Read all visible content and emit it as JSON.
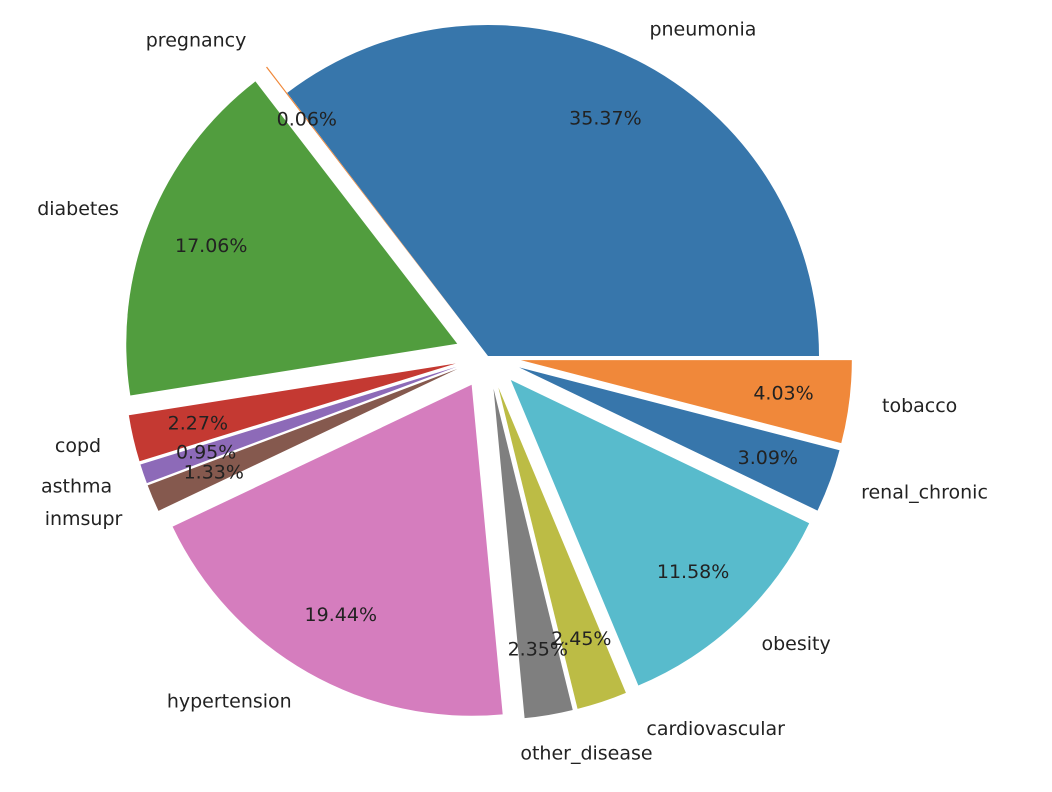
{
  "chart_data": {
    "type": "pie",
    "title": "",
    "start_angle_deg": 0,
    "direction": "counterclockwise",
    "slices": [
      {
        "label": "pneumonia",
        "percent_label": "35.37%",
        "value": 35.37,
        "color": "#3776ab",
        "explode": false
      },
      {
        "label": "pregnancy",
        "percent_label": "0.06%",
        "value": 0.06,
        "color": "#f0883a",
        "explode": true
      },
      {
        "label": "diabetes",
        "percent_label": "17.06%",
        "value": 17.06,
        "color": "#519d3e",
        "explode": true
      },
      {
        "label": "copd",
        "percent_label": "2.27%",
        "value": 2.27,
        "color": "#c43932",
        "explode": true
      },
      {
        "label": "asthma",
        "percent_label": "0.95%",
        "value": 0.95,
        "color": "#8d6ab8",
        "explode": true
      },
      {
        "label": "inmsupr",
        "percent_label": "1.33%",
        "value": 1.33,
        "color": "#85594e",
        "explode": true
      },
      {
        "label": "hypertension",
        "percent_label": "19.44%",
        "value": 19.44,
        "color": "#d57dbe",
        "explode": true
      },
      {
        "label": "other_disease",
        "percent_label": "2.35%",
        "value": 2.35,
        "color": "#7f7f7f",
        "explode": true
      },
      {
        "label": "cardiovascular",
        "percent_label": "2.45%",
        "value": 2.45,
        "color": "#bcbc45",
        "explode": true
      },
      {
        "label": "obesity",
        "percent_label": "11.58%",
        "value": 11.58,
        "color": "#58bbcc",
        "explode": true
      },
      {
        "label": "renal_chronic",
        "percent_label": "3.09%",
        "value": 3.09,
        "color": "#3776ab",
        "explode": true
      },
      {
        "label": "tobacco",
        "percent_label": "4.03%",
        "value": 4.03,
        "color": "#f0883a",
        "explode": true
      }
    ]
  }
}
